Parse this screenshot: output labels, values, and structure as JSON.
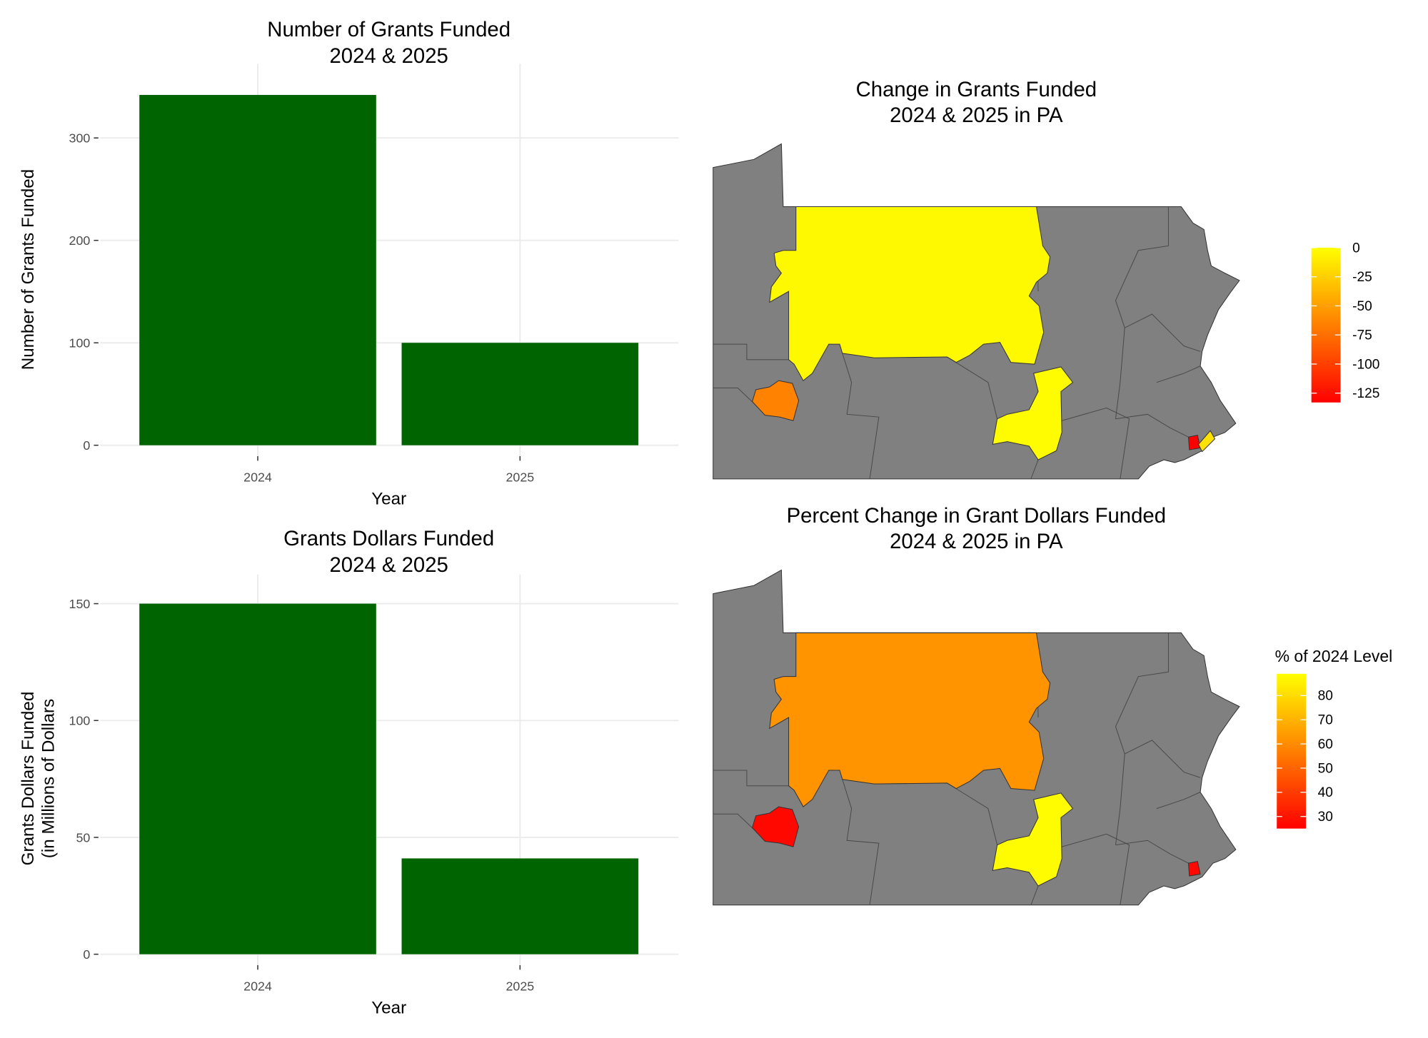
{
  "chart_data": [
    {
      "type": "bar",
      "title": [
        "Number of Grants Funded",
        "2024 & 2025"
      ],
      "xlabel": "Year",
      "ylabel": "Number of Grants Funded",
      "categories": [
        "2024",
        "2025"
      ],
      "values": [
        342,
        100
      ],
      "yticks": [
        0,
        100,
        200,
        300
      ],
      "ylim": [
        0,
        360
      ],
      "bar_color": "#006400",
      "grid": true
    },
    {
      "type": "bar",
      "title": [
        "Grants Dollars Funded",
        "2024 & 2025"
      ],
      "xlabel": "Year",
      "ylabel": [
        "Grants Dollars Funded",
        "(in Millions of Dollars"
      ],
      "categories": [
        "2024",
        "2025"
      ],
      "values": [
        150,
        41
      ],
      "yticks": [
        0,
        50,
        100,
        150
      ],
      "ylim": [
        0,
        157
      ],
      "bar_color": "#006400",
      "grid": true
    },
    {
      "type": "choropleth",
      "title": [
        "Change in Grants Funded",
        "2024 & 2025 in PA"
      ],
      "legend": {
        "title": "",
        "ticks": [
          "0",
          "-25",
          "-50",
          "-75",
          "-100",
          "-125"
        ],
        "range": [
          -133,
          0
        ],
        "low_color": "#FF0000",
        "high_color": "#FFFF00",
        "placement": "right"
      },
      "regions": [
        {
          "name": "north-central",
          "value": -3
        },
        {
          "name": "southwest",
          "value": -65
        },
        {
          "name": "south-central",
          "value": -2
        },
        {
          "name": "southeast-city",
          "value": -133
        },
        {
          "name": "southeast-suburb",
          "value": -15
        }
      ],
      "no_data_color": "#808080"
    },
    {
      "type": "choropleth",
      "title": [
        "Percent Change in Grant Dollars Funded",
        "2024 & 2025 in PA"
      ],
      "legend": {
        "title": "% of 2024 Level",
        "ticks": [
          "80",
          "70",
          "60",
          "50",
          "40",
          "30"
        ],
        "range": [
          25,
          89
        ],
        "low_color": "#FF0000",
        "high_color": "#FFFF00",
        "placement": "right"
      },
      "regions": [
        {
          "name": "north-central",
          "value": 62
        },
        {
          "name": "southwest",
          "value": 27
        },
        {
          "name": "south-central",
          "value": 88
        },
        {
          "name": "southeast-city",
          "value": 27
        }
      ],
      "no_data_color": "#808080"
    }
  ]
}
